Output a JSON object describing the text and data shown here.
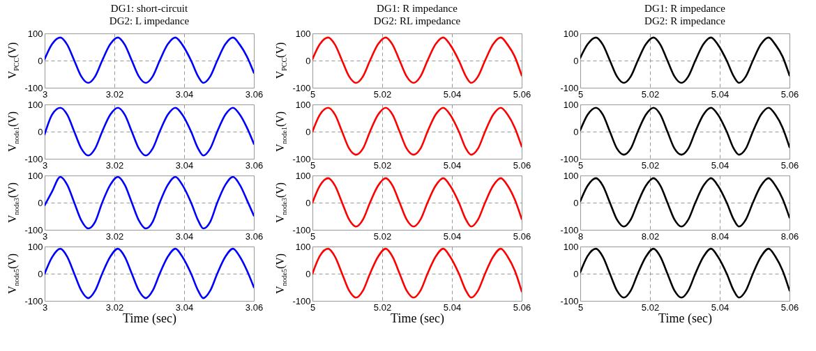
{
  "chart_data": [
    {
      "type": "line",
      "title": "DG1: short-circuit",
      "subtitle": "DG2: L impedance",
      "ylabel": "V$_{PCC}$(V)",
      "xlim": [
        3,
        3.06
      ],
      "xticks": [
        3,
        3.02,
        3.04,
        3.06
      ],
      "ylim": [
        -100,
        100
      ],
      "yticks": [
        -100,
        0,
        100
      ],
      "grid": true,
      "x": [
        3,
        3.0021,
        3.0045,
        3.0065,
        3.0085,
        3.0105,
        3.0125,
        3.0145,
        3.0165,
        3.0188,
        3.021,
        3.023,
        3.025,
        3.027,
        3.029,
        3.031,
        3.033,
        3.0353,
        3.0375,
        3.0395,
        3.042,
        3.044,
        3.0455,
        3.0475,
        3.0495,
        3.0518,
        3.054,
        3.056,
        3.058,
        3.06
      ],
      "series": [
        {
          "color": "#0000ff",
          "values": [
            5,
            60,
            85,
            58,
            0,
            -58,
            -82,
            -58,
            0,
            60,
            85,
            58,
            0,
            -58,
            -82,
            -58,
            0,
            60,
            85,
            58,
            0,
            -58,
            -82,
            -58,
            0,
            60,
            85,
            58,
            15,
            -45
          ]
        }
      ]
    },
    {
      "type": "line",
      "title": "DG1: R impedance",
      "subtitle": "DG2: RL impedance",
      "ylabel": "V$_{PCC}$(V)",
      "xlim": [
        5,
        5.06
      ],
      "xticks": [
        5,
        5.02,
        5.04,
        5.06
      ],
      "ylim": [
        -100,
        100
      ],
      "yticks": [
        -100,
        0,
        100
      ],
      "grid": true,
      "x": [
        5,
        5.0021,
        5.0045,
        5.0065,
        5.0085,
        5.0105,
        5.0125,
        5.0145,
        5.0165,
        5.0188,
        5.021,
        5.023,
        5.025,
        5.027,
        5.029,
        5.031,
        5.033,
        5.0353,
        5.0375,
        5.0395,
        5.042,
        5.044,
        5.0455,
        5.0475,
        5.0495,
        5.0518,
        5.054,
        5.056,
        5.058,
        5.06
      ],
      "series": [
        {
          "color": "#ff0000",
          "values": [
            5,
            60,
            85,
            58,
            0,
            -58,
            -82,
            -58,
            0,
            60,
            85,
            58,
            0,
            -58,
            -82,
            -58,
            0,
            60,
            85,
            58,
            0,
            -58,
            -82,
            -58,
            0,
            60,
            85,
            58,
            15,
            -55
          ]
        }
      ]
    },
    {
      "type": "line",
      "title": "DG1: R impedance",
      "subtitle": "DG2: R impedance",
      "xlim": [
        5,
        5.06
      ],
      "xticks": [
        5,
        5.02,
        5.04,
        5.06
      ],
      "ylim": [
        -100,
        100
      ],
      "yticks": [
        -100,
        0,
        100
      ],
      "grid": true,
      "x": [
        5,
        5.0021,
        5.0045,
        5.0065,
        5.0085,
        5.0105,
        5.0125,
        5.0145,
        5.0165,
        5.0188,
        5.021,
        5.023,
        5.025,
        5.027,
        5.029,
        5.031,
        5.033,
        5.0353,
        5.0375,
        5.0395,
        5.042,
        5.044,
        5.0455,
        5.0475,
        5.0495,
        5.0518,
        5.054,
        5.056,
        5.058,
        5.06
      ],
      "series": [
        {
          "color": "#000000",
          "values": [
            10,
            60,
            85,
            58,
            0,
            -58,
            -82,
            -58,
            0,
            60,
            85,
            58,
            0,
            -58,
            -82,
            -58,
            0,
            60,
            85,
            58,
            0,
            -58,
            -82,
            -58,
            0,
            60,
            85,
            58,
            15,
            -55
          ]
        }
      ]
    },
    {
      "type": "line",
      "ylabel": "V$_{node1}$(V)",
      "xlim": [
        3,
        3.06
      ],
      "xticks": [
        3,
        3.02,
        3.04,
        3.06
      ],
      "ylim": [
        -100,
        100
      ],
      "yticks": [
        -100,
        0,
        100
      ],
      "grid": true,
      "x": [
        3,
        3.0021,
        3.0045,
        3.0065,
        3.0085,
        3.0105,
        3.0125,
        3.0145,
        3.0165,
        3.0188,
        3.021,
        3.023,
        3.025,
        3.027,
        3.029,
        3.031,
        3.033,
        3.0353,
        3.0375,
        3.0395,
        3.042,
        3.044,
        3.0455,
        3.0475,
        3.0495,
        3.0518,
        3.054,
        3.056,
        3.058,
        3.06
      ],
      "series": [
        {
          "color": "#0000ff",
          "values": [
            -10,
            62,
            88,
            62,
            0,
            -62,
            -88,
            -62,
            0,
            62,
            88,
            62,
            0,
            -62,
            -88,
            -62,
            0,
            62,
            88,
            62,
            0,
            -62,
            -88,
            -62,
            0,
            62,
            88,
            62,
            15,
            -45
          ]
        }
      ]
    },
    {
      "type": "line",
      "ylabel": "V$_{node1}$(V)",
      "xlim": [
        5,
        5.06
      ],
      "xticks": [
        5,
        5.02,
        5.04,
        5.06
      ],
      "ylim": [
        -100,
        100
      ],
      "yticks": [
        -100,
        0,
        100
      ],
      "grid": true,
      "x": [
        5,
        5.0021,
        5.0045,
        5.0065,
        5.0085,
        5.0105,
        5.0125,
        5.0145,
        5.0165,
        5.0188,
        5.021,
        5.023,
        5.025,
        5.027,
        5.029,
        5.031,
        5.033,
        5.0353,
        5.0375,
        5.0395,
        5.042,
        5.044,
        5.0455,
        5.0475,
        5.0495,
        5.0518,
        5.054,
        5.056,
        5.058,
        5.06
      ],
      "series": [
        {
          "color": "#ff0000",
          "values": [
            0,
            62,
            88,
            62,
            0,
            -62,
            -85,
            -62,
            0,
            62,
            88,
            62,
            0,
            -62,
            -85,
            -62,
            0,
            62,
            88,
            62,
            0,
            -62,
            -85,
            -62,
            0,
            62,
            88,
            62,
            15,
            -55
          ]
        }
      ]
    },
    {
      "type": "line",
      "xlim": [
        5,
        5.06
      ],
      "xticks": [
        5,
        5.02,
        5.04,
        5.06
      ],
      "ylim": [
        -100,
        100
      ],
      "yticks": [
        -100,
        0,
        100
      ],
      "grid": true,
      "x": [
        5,
        5.0021,
        5.0045,
        5.0065,
        5.0085,
        5.0105,
        5.0125,
        5.0145,
        5.0165,
        5.0188,
        5.021,
        5.023,
        5.025,
        5.027,
        5.029,
        5.031,
        5.033,
        5.0353,
        5.0375,
        5.0395,
        5.042,
        5.044,
        5.0455,
        5.0475,
        5.0495,
        5.0518,
        5.054,
        5.056,
        5.058,
        5.06
      ],
      "series": [
        {
          "color": "#000000",
          "values": [
            5,
            62,
            88,
            62,
            0,
            -62,
            -85,
            -62,
            0,
            62,
            88,
            62,
            0,
            -62,
            -85,
            -62,
            0,
            62,
            88,
            62,
            0,
            -62,
            -85,
            -62,
            0,
            62,
            88,
            62,
            15,
            -57
          ]
        }
      ]
    },
    {
      "type": "line",
      "ylabel": "V$_{node3}$(V)",
      "xlim": [
        3,
        3.06
      ],
      "xticks": [
        3,
        3.02,
        3.04,
        3.06
      ],
      "ylim": [
        -100,
        100
      ],
      "yticks": [
        -100,
        0,
        100
      ],
      "grid": true,
      "x": [
        3,
        3.0021,
        3.0045,
        3.0065,
        3.0085,
        3.0105,
        3.0125,
        3.0145,
        3.0165,
        3.0188,
        3.021,
        3.023,
        3.025,
        3.027,
        3.029,
        3.031,
        3.033,
        3.0353,
        3.0375,
        3.0395,
        3.042,
        3.044,
        3.0455,
        3.0475,
        3.0495,
        3.0518,
        3.054,
        3.056,
        3.058,
        3.06
      ],
      "series": [
        {
          "color": "#0000ff",
          "values": [
            -10,
            40,
            95,
            65,
            0,
            -65,
            -95,
            -70,
            0,
            65,
            95,
            65,
            0,
            -65,
            -95,
            -70,
            0,
            65,
            95,
            65,
            0,
            -65,
            -95,
            -70,
            0,
            65,
            95,
            65,
            10,
            -48
          ]
        }
      ]
    },
    {
      "type": "line",
      "ylabel": "V$_{node3}$(V)",
      "xlim": [
        5,
        5.06
      ],
      "xticks": [
        5,
        5.02,
        5.04,
        5.06
      ],
      "ylim": [
        -100,
        100
      ],
      "yticks": [
        -100,
        0,
        100
      ],
      "grid": true,
      "x": [
        5,
        5.0021,
        5.0045,
        5.0065,
        5.0085,
        5.0105,
        5.0125,
        5.0145,
        5.0165,
        5.0188,
        5.021,
        5.023,
        5.025,
        5.027,
        5.029,
        5.031,
        5.033,
        5.0353,
        5.0375,
        5.0395,
        5.042,
        5.044,
        5.0455,
        5.0475,
        5.0495,
        5.0518,
        5.054,
        5.056,
        5.058,
        5.06
      ],
      "series": [
        {
          "color": "#ff0000",
          "values": [
            0,
            62,
            90,
            62,
            0,
            -62,
            -88,
            -62,
            0,
            62,
            90,
            62,
            0,
            -62,
            -88,
            -62,
            0,
            62,
            90,
            62,
            0,
            -62,
            -88,
            -62,
            0,
            62,
            90,
            62,
            12,
            -60
          ]
        }
      ]
    },
    {
      "type": "line",
      "xlim": [
        8,
        8.06
      ],
      "xticks": [
        8,
        8.02,
        8.04,
        8.06
      ],
      "ylim": [
        -100,
        100
      ],
      "yticks": [
        -100,
        0,
        100
      ],
      "grid": true,
      "x": [
        8,
        8.0021,
        8.0045,
        8.0065,
        8.0085,
        8.0105,
        8.0125,
        8.0145,
        8.0165,
        8.0188,
        8.021,
        8.023,
        8.025,
        8.027,
        8.029,
        8.031,
        8.033,
        8.0353,
        8.0375,
        8.0395,
        8.042,
        8.044,
        8.0455,
        8.0475,
        8.0495,
        8.0518,
        8.054,
        8.056,
        8.058,
        8.06
      ],
      "series": [
        {
          "color": "#000000",
          "values": [
            5,
            62,
            90,
            62,
            0,
            -62,
            -88,
            -62,
            0,
            62,
            90,
            62,
            0,
            -62,
            -88,
            -62,
            0,
            62,
            90,
            62,
            0,
            -62,
            -88,
            -62,
            0,
            62,
            90,
            62,
            15,
            -55
          ]
        }
      ]
    },
    {
      "type": "line",
      "ylabel": "V$_{node5}$(V)",
      "xlabel": "Time (sec)",
      "xlim": [
        3,
        3.06
      ],
      "xticks": [
        3,
        3.02,
        3.04,
        3.06
      ],
      "ylim": [
        -100,
        100
      ],
      "yticks": [
        -100,
        0,
        100
      ],
      "grid": true,
      "x": [
        3,
        3.0021,
        3.0045,
        3.0065,
        3.0085,
        3.0105,
        3.0125,
        3.0145,
        3.0165,
        3.0188,
        3.021,
        3.023,
        3.025,
        3.027,
        3.029,
        3.031,
        3.033,
        3.0353,
        3.0375,
        3.0395,
        3.042,
        3.044,
        3.0455,
        3.0475,
        3.0495,
        3.0518,
        3.054,
        3.056,
        3.058,
        3.06
      ],
      "series": [
        {
          "color": "#0000ff",
          "values": [
            0,
            60,
            92,
            62,
            0,
            -62,
            -90,
            -62,
            0,
            62,
            92,
            62,
            0,
            -62,
            -90,
            -62,
            0,
            62,
            92,
            62,
            0,
            -62,
            -90,
            -62,
            0,
            62,
            92,
            62,
            12,
            -50
          ]
        }
      ]
    },
    {
      "type": "line",
      "ylabel": "V$_{node5}$(V)",
      "xlabel": "Time (sec)",
      "xlim": [
        5,
        5.06
      ],
      "xticks": [
        5,
        5.02,
        5.04,
        5.06
      ],
      "ylim": [
        -100,
        100
      ],
      "yticks": [
        -100,
        0,
        100
      ],
      "grid": true,
      "x": [
        5,
        5.0021,
        5.0045,
        5.0065,
        5.0085,
        5.0105,
        5.0125,
        5.0145,
        5.0165,
        5.0188,
        5.021,
        5.023,
        5.025,
        5.027,
        5.029,
        5.031,
        5.033,
        5.0353,
        5.0375,
        5.0395,
        5.042,
        5.044,
        5.0455,
        5.0475,
        5.0495,
        5.0518,
        5.054,
        5.056,
        5.058,
        5.06
      ],
      "series": [
        {
          "color": "#ff0000",
          "values": [
            0,
            65,
            92,
            62,
            0,
            -62,
            -88,
            -62,
            0,
            62,
            92,
            62,
            0,
            -62,
            -88,
            -62,
            0,
            62,
            92,
            62,
            0,
            -62,
            -88,
            -62,
            0,
            62,
            92,
            62,
            12,
            -65
          ]
        }
      ]
    },
    {
      "type": "line",
      "xlabel": "Time (sec)",
      "xlim": [
        5,
        5.06
      ],
      "xticks": [
        5,
        5.02,
        5.04,
        5.06
      ],
      "ylim": [
        -100,
        100
      ],
      "yticks": [
        -100,
        0,
        100
      ],
      "grid": true,
      "x": [
        5,
        5.0021,
        5.0045,
        5.0065,
        5.0085,
        5.0105,
        5.0125,
        5.0145,
        5.0165,
        5.0188,
        5.021,
        5.023,
        5.025,
        5.027,
        5.029,
        5.031,
        5.033,
        5.0353,
        5.0375,
        5.0395,
        5.042,
        5.044,
        5.0455,
        5.0475,
        5.0495,
        5.0518,
        5.054,
        5.056,
        5.058,
        5.06
      ],
      "series": [
        {
          "color": "#000000",
          "values": [
            5,
            65,
            92,
            62,
            0,
            -62,
            -88,
            -62,
            0,
            62,
            92,
            62,
            0,
            -62,
            -88,
            -62,
            0,
            62,
            92,
            62,
            0,
            -62,
            -88,
            -62,
            0,
            62,
            92,
            62,
            12,
            -62
          ]
        }
      ]
    }
  ]
}
